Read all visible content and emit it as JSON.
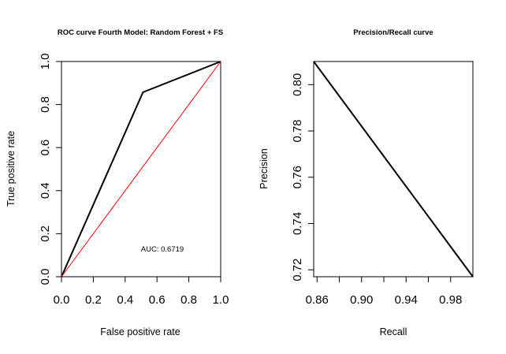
{
  "chart_data": [
    {
      "type": "line",
      "title": "ROC curve Fourth Model: Random Forest + FS",
      "xlabel": "False positive rate",
      "ylabel": "True positive rate",
      "xlim": [
        0,
        1
      ],
      "ylim": [
        0,
        1
      ],
      "xticks": [
        "0.0",
        "0.2",
        "0.4",
        "0.6",
        "0.8",
        "1.0"
      ],
      "yticks": [
        "0.0",
        "0.2",
        "0.4",
        "0.6",
        "0.8",
        "1.0"
      ],
      "grid": false,
      "series": [
        {
          "color": "#000000",
          "x": [
            0,
            0.512,
            1
          ],
          "y": [
            0,
            0.857,
            1
          ]
        },
        {
          "color": "#ff0000",
          "x": [
            0,
            1
          ],
          "y": [
            0,
            1
          ]
        }
      ],
      "annotation": "AUC: 0.6719"
    },
    {
      "type": "line",
      "title": "Precision/Recall curve",
      "xlabel": "Recall",
      "ylabel": "Precision",
      "xlim": [
        0.857,
        1
      ],
      "ylim": [
        0.717,
        0.81
      ],
      "xticks": [
        "0.86",
        "0.90",
        "0.94",
        "0.98"
      ],
      "yticks": [
        "0.72",
        "0.74",
        "0.76",
        "0.78",
        "0.80"
      ],
      "grid": false,
      "series": [
        {
          "color": "#000000",
          "x": [
            0.857,
            1
          ],
          "y": [
            0.81,
            0.717
          ]
        }
      ]
    }
  ]
}
